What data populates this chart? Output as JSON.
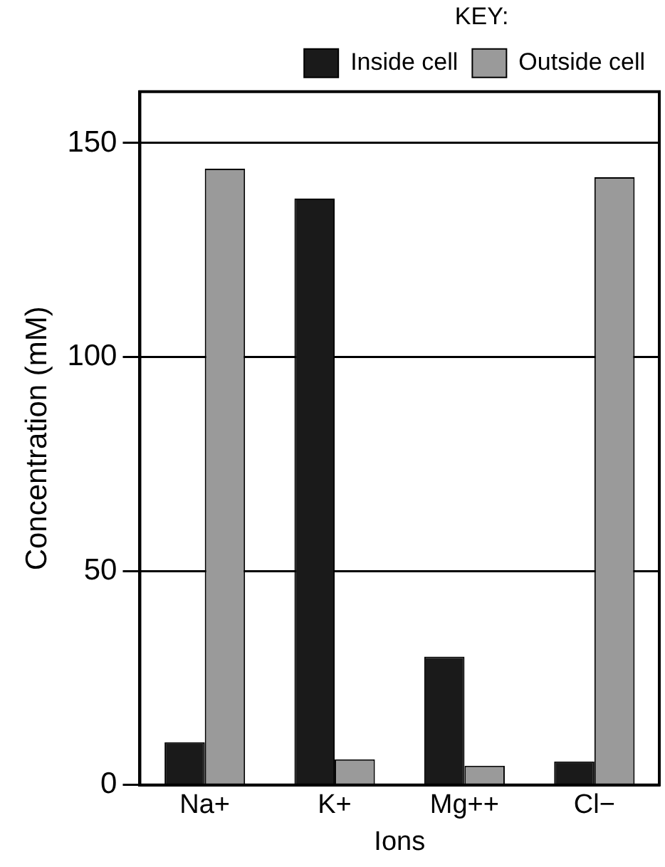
{
  "chart_data": {
    "type": "bar",
    "xlabel": "Ions",
    "ylabel": "Concentration (mM)",
    "legend_title": "KEY:",
    "categories": [
      "Na+",
      "K+",
      "Mg++",
      "Cl−"
    ],
    "series": [
      {
        "name": "Inside cell",
        "color": "#1a1a1a",
        "values": [
          10,
          137,
          30,
          5.5
        ]
      },
      {
        "name": "Outside cell",
        "color": "#9a9a9a",
        "values": [
          144,
          6,
          4.5,
          142
        ]
      }
    ],
    "ylim": [
      0,
      162
    ],
    "yticks": [
      0,
      50,
      100,
      150
    ],
    "grid": "y",
    "legend": "top right"
  }
}
